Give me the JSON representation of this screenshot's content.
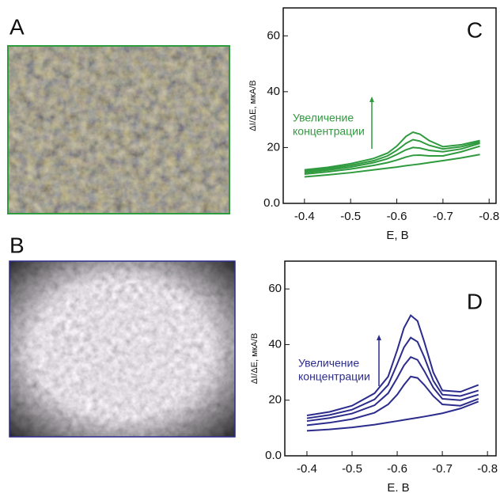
{
  "photo_labels": [
    "A",
    "B"
  ],
  "chart_data": [
    {
      "type": "line",
      "panel": "C",
      "ylabel": "ΔI/ΔE, мкА/В",
      "xlabel": "E, В",
      "annotation": [
        "Увеличение",
        "концентрации"
      ],
      "xlim": [
        -0.354,
        -0.815
      ],
      "ylim": [
        0,
        70
      ],
      "xticks": [
        -0.4,
        -0.5,
        -0.6,
        -0.7,
        -0.8
      ],
      "yticks": [
        {
          "value": 0,
          "label": "0.0"
        },
        20,
        40,
        60
      ],
      "x": [
        -0.4,
        -0.45,
        -0.5,
        -0.55,
        -0.58,
        -0.6,
        -0.62,
        -0.635,
        -0.65,
        -0.67,
        -0.7,
        -0.74,
        -0.78
      ],
      "series": [
        {
          "color": "#2f9a3e",
          "values": [
            9.5,
            10.2,
            11,
            12,
            12.6,
            13,
            13.5,
            13.8,
            14.1,
            14.6,
            15.3,
            16.3,
            17.5
          ]
        },
        {
          "color": "#2f9a3e",
          "values": [
            10.5,
            11.3,
            12.3,
            13.6,
            14.6,
            15.5,
            16.6,
            17.2,
            17.3,
            17,
            17,
            18.5,
            20.5
          ]
        },
        {
          "color": "#2f9a3e",
          "values": [
            11,
            11.9,
            13,
            14.6,
            16,
            17.5,
            19.2,
            20,
            19.8,
            19,
            18.5,
            19.5,
            21.5
          ]
        },
        {
          "color": "#2f9a3e",
          "values": [
            11.5,
            12.4,
            13.6,
            15.3,
            17,
            19,
            21.5,
            22.8,
            22.3,
            20.8,
            19.5,
            20.3,
            22
          ]
        },
        {
          "color": "#2f9a3e",
          "values": [
            12,
            12.9,
            14.2,
            16.1,
            18,
            20.5,
            24,
            25.5,
            24.8,
            22.5,
            20.3,
            21,
            22.5
          ]
        }
      ]
    },
    {
      "type": "line",
      "panel": "D",
      "ylabel": "ΔI/ΔE, мкА/В",
      "xlabel": "Е. В",
      "annotation": [
        "Увеличение",
        "концентрации"
      ],
      "xlim": [
        -0.351,
        -0.819
      ],
      "ylim": [
        0,
        70
      ],
      "xticks": [
        -0.4,
        -0.5,
        -0.6,
        -0.7,
        -0.8
      ],
      "yticks": [
        {
          "value": 0,
          "label": "0.0"
        },
        20,
        40,
        60
      ],
      "x": [
        -0.4,
        -0.45,
        -0.5,
        -0.55,
        -0.58,
        -0.6,
        -0.615,
        -0.63,
        -0.645,
        -0.66,
        -0.68,
        -0.7,
        -0.74,
        -0.78
      ],
      "series": [
        {
          "color": "#2c2c8c",
          "values": [
            9,
            9.5,
            10.2,
            11.2,
            12,
            12.5,
            12.9,
            13.3,
            13.7,
            14.1,
            14.7,
            15.3,
            17,
            19.5
          ]
        },
        {
          "color": "#2c2c8c",
          "values": [
            11,
            11.9,
            13.2,
            15.5,
            18.5,
            22,
            25.5,
            28.5,
            28,
            25.5,
            21.5,
            18.5,
            18,
            20.5
          ]
        },
        {
          "color": "#2c2c8c",
          "values": [
            12.5,
            13.6,
            15.2,
            18.2,
            22.5,
            28,
            32.5,
            35.5,
            34.5,
            30.5,
            24.5,
            20.5,
            20,
            22
          ]
        },
        {
          "color": "#2c2c8c",
          "values": [
            13.5,
            14.7,
            16.6,
            20.3,
            25.5,
            33,
            39,
            42.5,
            41,
            35.5,
            27,
            22,
            21.5,
            23.5
          ]
        },
        {
          "color": "#2c2c8c",
          "values": [
            14.5,
            15.8,
            18,
            22.5,
            28.5,
            38,
            46,
            50.5,
            48.5,
            41,
            30,
            23.5,
            23,
            25.5
          ]
        }
      ]
    }
  ]
}
